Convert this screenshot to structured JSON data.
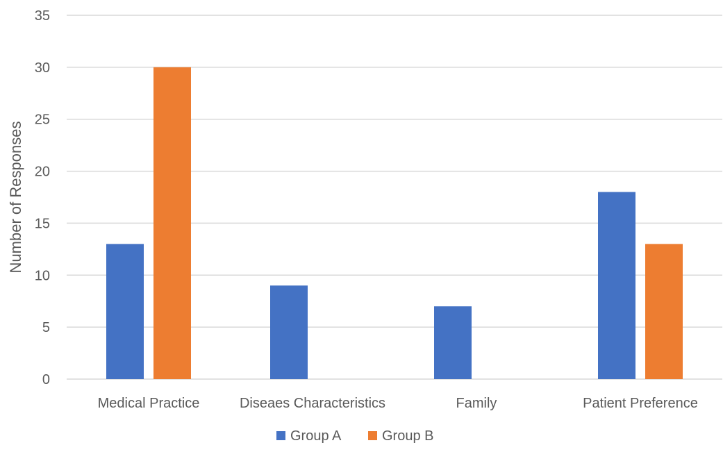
{
  "chart_data": {
    "type": "bar",
    "title": "",
    "xlabel": "",
    "ylabel": "Number of Responses",
    "categories": [
      "Medical Practice",
      "Diseaes Characteristics",
      "Family",
      "Patient Preference"
    ],
    "series": [
      {
        "name": "Group A",
        "color": "#4472C4",
        "values": [
          13,
          9,
          7,
          18
        ]
      },
      {
        "name": "Group B",
        "color": "#ED7D31",
        "values": [
          30,
          0,
          0,
          13
        ]
      }
    ],
    "ylim": [
      0,
      35
    ],
    "yticks": [
      "0",
      "5",
      "10",
      "15",
      "20",
      "25",
      "30",
      "35"
    ],
    "grid": true,
    "legend_position": "bottom",
    "colors": {
      "gridline": "#D9D9D9",
      "axis_line": "#D9D9D9",
      "text": "#595959"
    }
  }
}
